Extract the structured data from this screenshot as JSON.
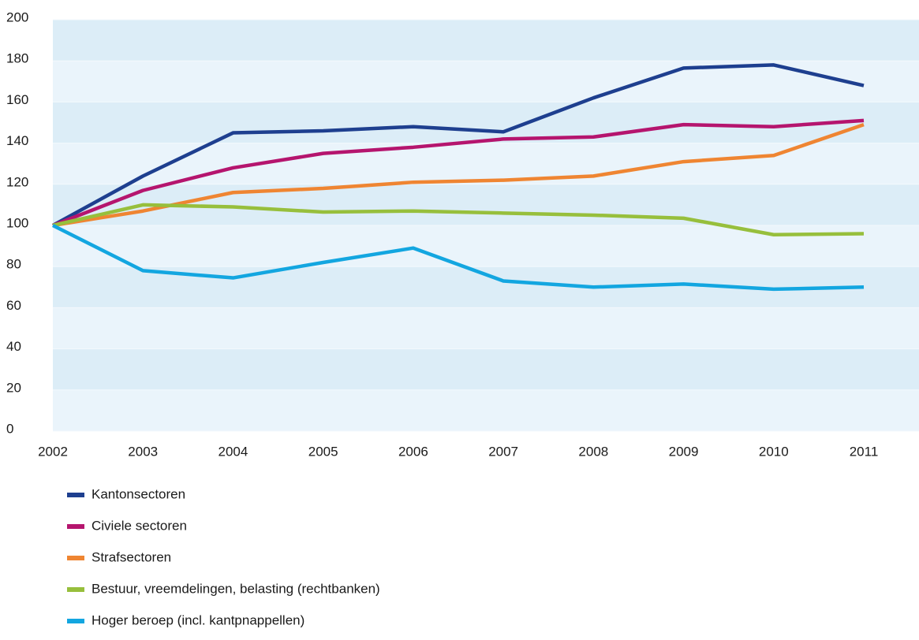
{
  "chart_data": {
    "type": "line",
    "categories": [
      "2002",
      "2003",
      "2004",
      "2005",
      "2006",
      "2007",
      "2008",
      "2009",
      "2010",
      "2011"
    ],
    "series": [
      {
        "name": "Kantonsectoren",
        "color": "#1e3f8f",
        "values": [
          100,
          124,
          145,
          146,
          148,
          145.5,
          162,
          176.5,
          178,
          168
        ]
      },
      {
        "name": "Civiele sectoren",
        "color": "#b5156e",
        "values": [
          100,
          117,
          128,
          135,
          138,
          142,
          143,
          149,
          148,
          151
        ]
      },
      {
        "name": "Strafsectoren",
        "color": "#ef8532",
        "values": [
          100,
          107,
          116,
          118,
          121,
          122,
          124,
          131,
          134,
          149
        ]
      },
      {
        "name": "Bestuur, vreemdelingen, belasting (rechtbanken)",
        "color": "#97bf3c",
        "values": [
          100,
          110,
          109,
          106.5,
          107,
          106,
          105,
          103.5,
          95.5,
          96
        ]
      },
      {
        "name": "Hoger beroep (incl. kantpnappellen)",
        "color": "#13a6e0",
        "values": [
          100,
          78,
          74.5,
          82,
          89,
          73,
          70,
          71.5,
          69,
          70
        ]
      }
    ],
    "ylim": [
      0,
      200
    ],
    "yticks": [
      0,
      20,
      40,
      60,
      80,
      100,
      120,
      140,
      160,
      180,
      200
    ],
    "grid": true
  }
}
